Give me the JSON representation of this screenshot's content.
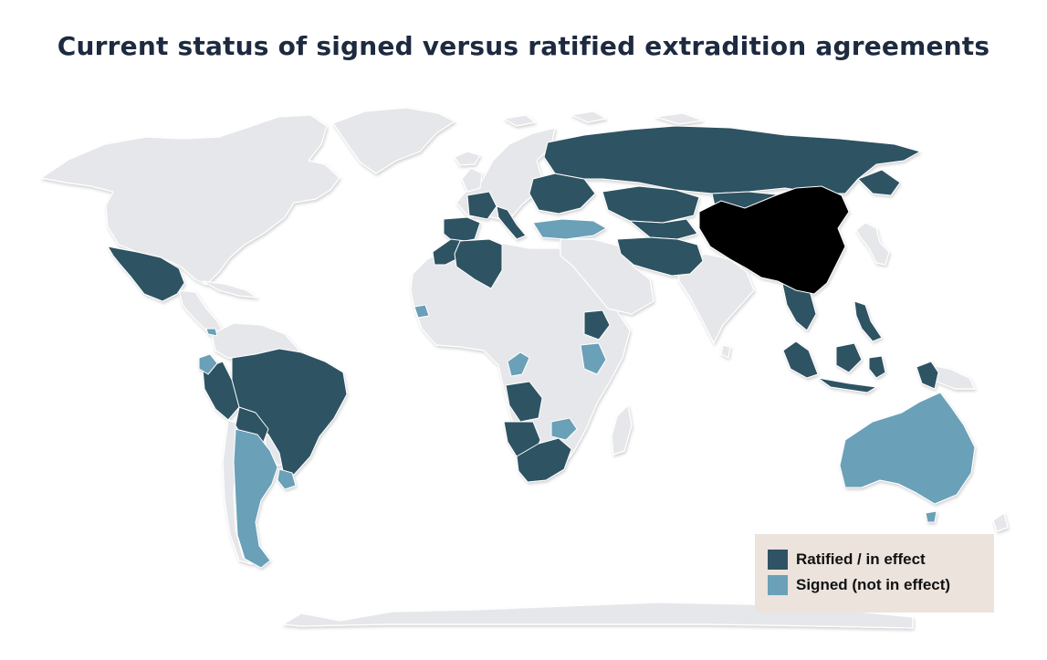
{
  "title": "Current status of signed versus ratified extradition agreements",
  "colors": {
    "background": "#ffffff",
    "land": "#e6e7ea",
    "ratified": "#2f5364",
    "signed": "#6aa0b8",
    "china": "#000000",
    "legend_bg": "#ece3dd",
    "title": "#1d2a3f"
  },
  "legend": {
    "items": [
      {
        "label": "Ratified / in effect",
        "color": "#2f5364"
      },
      {
        "label": "Signed (not in effect)",
        "color": "#6aa0b8"
      }
    ]
  },
  "status": {
    "ratified": [
      "France",
      "Spain",
      "Portugal",
      "Italy",
      "Bulgaria",
      "Romania",
      "Ukraine",
      "Belarus",
      "Lithuania",
      "Russia",
      "Kazakhstan",
      "Uzbekistan",
      "Kyrgyzstan",
      "Tajikistan",
      "Mongolia",
      "Iran",
      "Afghanistan",
      "Pakistan",
      "Morocco",
      "Algeria",
      "Tunisia",
      "Ethiopia",
      "Angola",
      "Namibia",
      "South Africa",
      "Lesotho",
      "Thailand",
      "Laos",
      "Cambodia",
      "Vietnam",
      "Philippines",
      "Indonesia",
      "Mexico",
      "Brazil",
      "Peru",
      "Bolivia"
    ],
    "signed": [
      "Turkey",
      "Senegal",
      "Republic of the Congo",
      "Kenya",
      "Zimbabwe",
      "Argentina",
      "Uruguay",
      "Ecuador",
      "Costa Rica",
      "Australia"
    ],
    "highlight": [
      "China"
    ]
  }
}
